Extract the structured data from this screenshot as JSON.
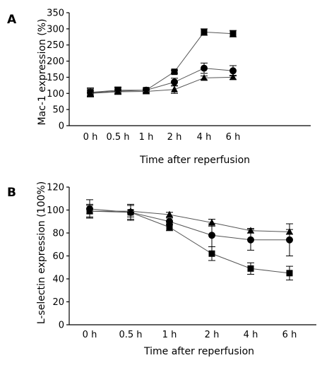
{
  "chart_data": [
    {
      "panel": "A",
      "type": "line",
      "categories": [
        "0 h",
        "0.5 h",
        "1 h",
        "2 h",
        "4 h",
        "6 h"
      ],
      "xlabel": "Time after reperfusion",
      "ylabel": "Mac-1 expression (%)",
      "ylim": [
        0,
        350
      ],
      "yticks": [
        0,
        50,
        100,
        150,
        200,
        250,
        300,
        350
      ],
      "series": [
        {
          "marker": "square",
          "values": [
            103,
            110,
            110,
            167,
            290,
            285
          ],
          "errors": [
            14,
            10,
            6,
            5,
            10,
            10
          ]
        },
        {
          "marker": "circle",
          "values": [
            102,
            107,
            110,
            135,
            178,
            170
          ],
          "errors": [
            12,
            10,
            6,
            12,
            16,
            16
          ]
        },
        {
          "marker": "triangle",
          "values": [
            100,
            105,
            106,
            112,
            148,
            150
          ],
          "errors": [
            8,
            8,
            6,
            12,
            6,
            6
          ]
        }
      ]
    },
    {
      "panel": "B",
      "type": "line",
      "categories": [
        "0 h",
        "0.5 h",
        "1 h",
        "2 h",
        "4 h",
        "6 h"
      ],
      "xlabel": "Time after reperfusion",
      "ylabel": "L-selectin expression (100%)",
      "ylim": [
        0,
        120
      ],
      "yticks": [
        0,
        20,
        40,
        60,
        80,
        100,
        120
      ],
      "series": [
        {
          "marker": "square",
          "values": [
            99,
            98,
            85,
            62,
            49,
            45
          ],
          "errors": [
            6,
            6,
            3,
            6,
            5,
            6
          ]
        },
        {
          "marker": "circle",
          "values": [
            101,
            98,
            90,
            78,
            74,
            74
          ],
          "errors": [
            8,
            7,
            3,
            10,
            9,
            14
          ]
        },
        {
          "marker": "triangle",
          "values": [
            99,
            99,
            96,
            89,
            82,
            81
          ],
          "errors": [
            5,
            5,
            2,
            3,
            2,
            2
          ]
        }
      ]
    }
  ]
}
